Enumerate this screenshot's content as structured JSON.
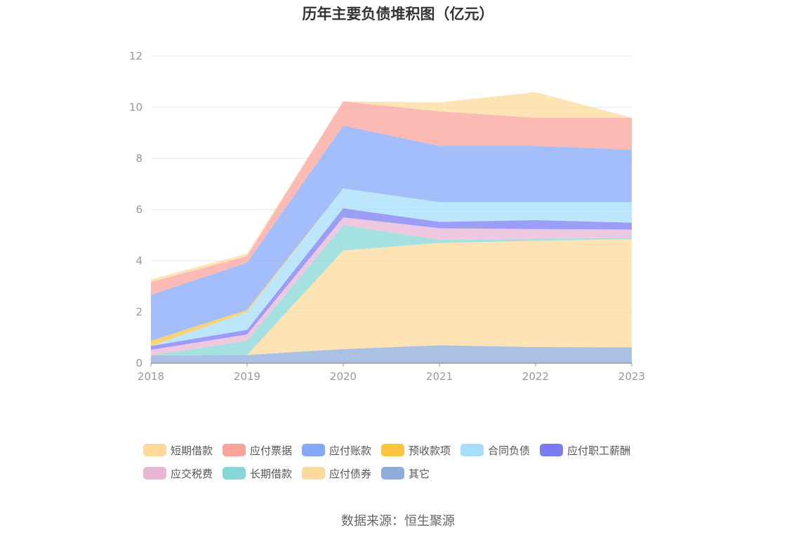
{
  "title": "历年主要负债堆积图（亿元）",
  "source": "数据来源：恒生聚源",
  "chart_data": {
    "type": "area",
    "stacked": true,
    "categories": [
      "2018",
      "2019",
      "2020",
      "2021",
      "2022",
      "2023"
    ],
    "ylim": [
      0,
      12
    ],
    "yticks": [
      0,
      2,
      4,
      6,
      8,
      10,
      12
    ],
    "grid": true,
    "legend_position": "bottom",
    "series": [
      {
        "name": "其它",
        "color": "#8eacd9",
        "values": [
          0.3,
          0.32,
          0.55,
          0.7,
          0.63,
          0.62
        ]
      },
      {
        "name": "应付债券",
        "color": "#fdd99b",
        "values": [
          0.0,
          0.0,
          3.85,
          4.0,
          4.15,
          4.23
        ]
      },
      {
        "name": "长期借款",
        "color": "#87d7d7",
        "values": [
          0.0,
          0.55,
          1.0,
          0.12,
          0.08,
          0.05
        ]
      },
      {
        "name": "应交税费",
        "color": "#e8b5d5",
        "values": [
          0.22,
          0.25,
          0.3,
          0.45,
          0.38,
          0.32
        ]
      },
      {
        "name": "应付职工薪酬",
        "color": "#7b7cf0",
        "values": [
          0.15,
          0.18,
          0.35,
          0.25,
          0.35,
          0.27
        ]
      },
      {
        "name": "合同负债",
        "color": "#a6ddfa",
        "values": [
          0.0,
          0.7,
          0.78,
          0.77,
          0.7,
          0.8
        ]
      },
      {
        "name": "预收款项",
        "color": "#fdc43f",
        "values": [
          0.2,
          0.08,
          0.0,
          0.0,
          0.0,
          0.0
        ]
      },
      {
        "name": "应付账款",
        "color": "#86a8f9",
        "values": [
          1.8,
          1.85,
          2.45,
          2.2,
          2.2,
          2.05
        ]
      },
      {
        "name": "应付票据",
        "color": "#f9a39b",
        "values": [
          0.5,
          0.25,
          0.95,
          1.35,
          1.1,
          1.25
        ]
      },
      {
        "name": "短期借款",
        "color": "#fdd99b",
        "values": [
          0.1,
          0.1,
          0.0,
          0.35,
          1.0,
          0.0
        ]
      }
    ],
    "legend_order": [
      "短期借款",
      "应付票据",
      "应付账款",
      "预收款项",
      "合同负债",
      "应付职工薪酬",
      "应交税费",
      "长期借款",
      "应付债券",
      "其它"
    ]
  }
}
